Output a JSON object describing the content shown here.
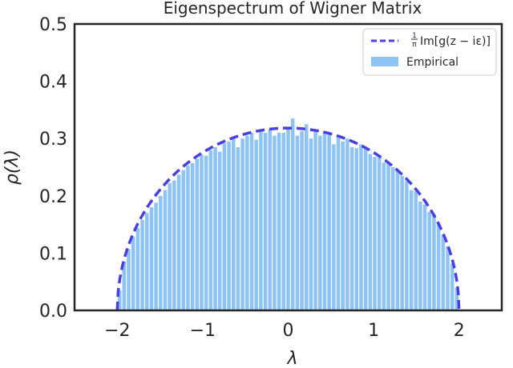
{
  "chart_data": {
    "type": "bar",
    "title": "Eigenspectrum of Wigner Matrix",
    "xlabel": "λ",
    "ylabel": "ρ(λ)",
    "xlim": [
      -2.5,
      2.5
    ],
    "ylim": [
      0,
      0.5
    ],
    "xticks": [
      "−2",
      "−1",
      "0",
      "1",
      "2"
    ],
    "yticks": [
      "0.0",
      "0.1",
      "0.2",
      "0.3",
      "0.4",
      "0.5"
    ],
    "grid": false,
    "legend_position": "top-right",
    "series": [
      {
        "name": "1/π Im[g(z − iε)]",
        "type": "line",
        "style": "dashed",
        "color": "#4a3fe0",
        "function": "semicircle sqrt(4 - x^2) / (2π)",
        "domain": [
          -2,
          2
        ]
      },
      {
        "name": "Empirical",
        "type": "histogram",
        "color": "#8ec4f5",
        "bins": [
          -2.0,
          2.0
        ],
        "bin_count": 75,
        "values": [
          0.035,
          0.085,
          0.107,
          0.128,
          0.144,
          0.158,
          0.17,
          0.18,
          0.188,
          0.2,
          0.21,
          0.222,
          0.227,
          0.237,
          0.245,
          0.253,
          0.257,
          0.265,
          0.272,
          0.27,
          0.28,
          0.285,
          0.277,
          0.292,
          0.295,
          0.3,
          0.285,
          0.3,
          0.305,
          0.31,
          0.298,
          0.312,
          0.31,
          0.316,
          0.305,
          0.31,
          0.31,
          0.318,
          0.335,
          0.305,
          0.313,
          0.325,
          0.3,
          0.315,
          0.305,
          0.313,
          0.31,
          0.29,
          0.306,
          0.295,
          0.3,
          0.285,
          0.283,
          0.29,
          0.282,
          0.273,
          0.268,
          0.27,
          0.258,
          0.258,
          0.25,
          0.243,
          0.235,
          0.226,
          0.21,
          0.208,
          0.19,
          0.185,
          0.172,
          0.168,
          0.152,
          0.132,
          0.112,
          0.082,
          0.04
        ]
      }
    ]
  },
  "legend": {
    "line_label_frac": "1",
    "line_label_den": "π",
    "line_label_rest": "Im[g(z − iε)]",
    "bar_label": "Empirical"
  }
}
